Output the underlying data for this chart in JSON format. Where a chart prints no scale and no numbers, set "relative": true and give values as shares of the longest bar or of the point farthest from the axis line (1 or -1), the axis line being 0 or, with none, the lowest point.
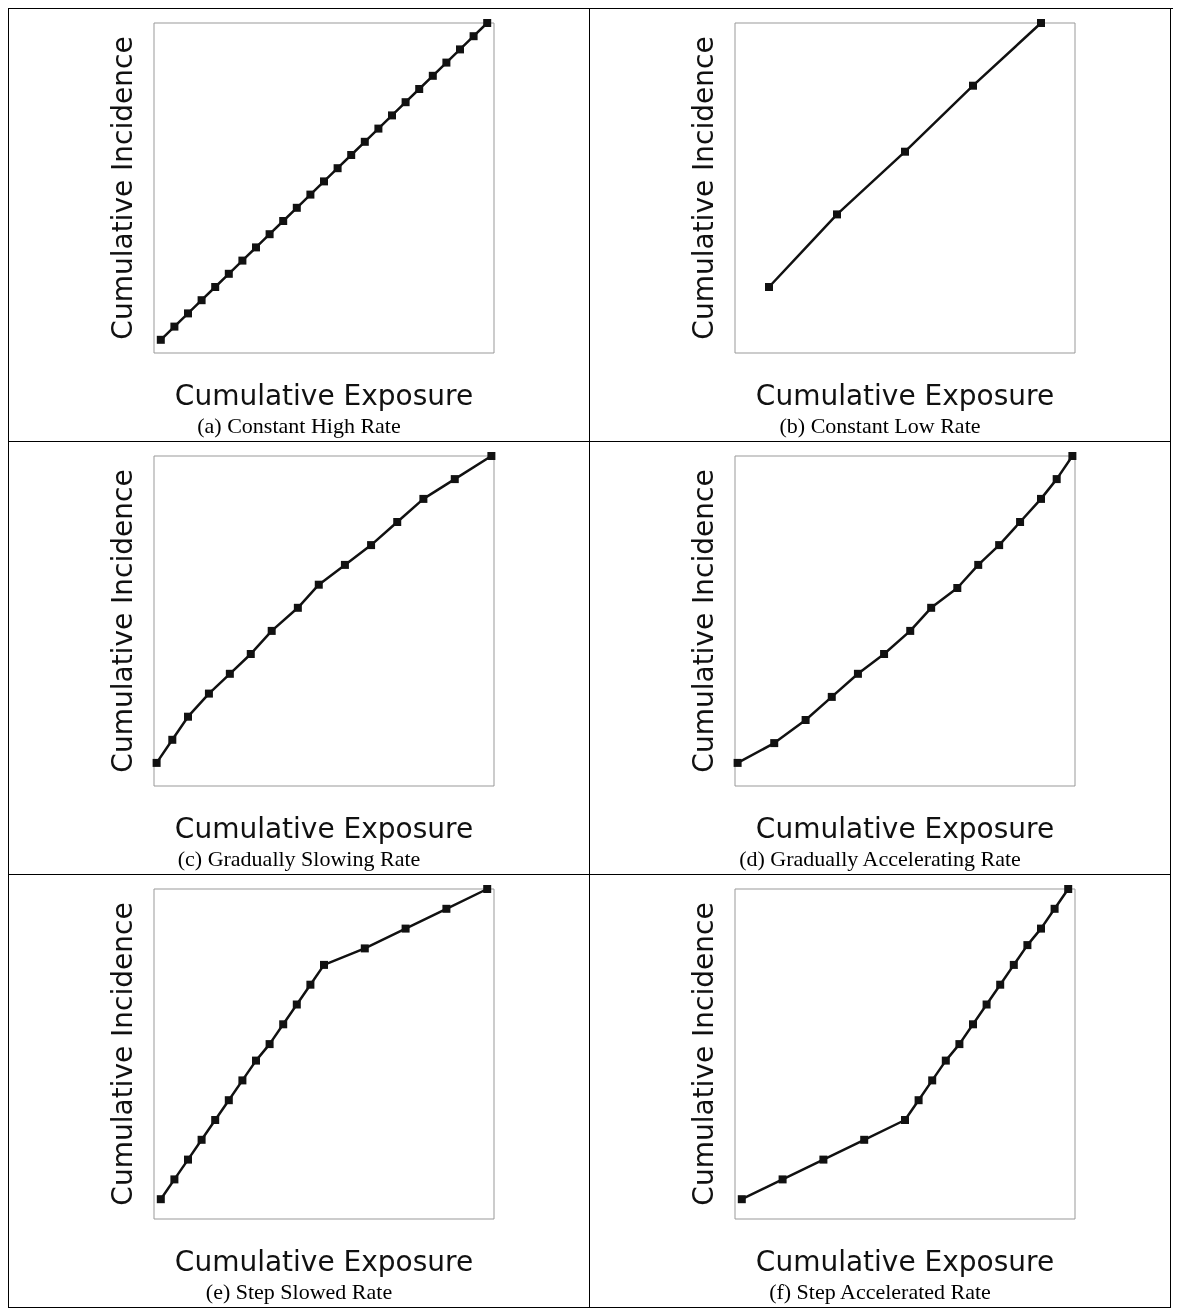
{
  "chart_data": [
    {
      "type": "line",
      "relative": true,
      "title": "(a) Constant High Rate",
      "xlabel": "Cumulative Exposure",
      "ylabel": "Cumulative Incidence",
      "color": "#111111",
      "marker": "square",
      "categories": [
        null,
        null,
        null,
        null,
        null,
        null,
        null,
        null,
        null,
        null,
        null,
        null,
        null,
        null,
        null,
        null,
        null,
        null,
        null,
        null,
        null,
        null,
        null,
        null,
        null
      ],
      "values": [
        0.04,
        0.08,
        0.12,
        0.16,
        0.2,
        0.24,
        0.28,
        0.32,
        0.36,
        0.4,
        0.44,
        0.48,
        0.52,
        0.56,
        0.6,
        0.64,
        0.68,
        0.72,
        0.76,
        0.8,
        0.84,
        0.88,
        0.92,
        0.96,
        1.0
      ]
    },
    {
      "type": "line",
      "relative": true,
      "title": "(b) Constant Low Rate",
      "xlabel": "Cumulative Exposure",
      "ylabel": "Cumulative Incidence",
      "color": "#111111",
      "marker": "square",
      "categories": [
        null,
        null,
        null,
        null,
        null
      ],
      "values": [
        0.2,
        0.42,
        0.61,
        0.81,
        1.0
      ]
    },
    {
      "type": "line",
      "relative": true,
      "title": "(c) Gradually Slowing Rate",
      "xlabel": "Cumulative Exposure",
      "ylabel": "Cumulative Incidence",
      "color": "#111111",
      "marker": "square",
      "categories": [
        null,
        null,
        null,
        null,
        null,
        null,
        null,
        null,
        null,
        null,
        null,
        null,
        null,
        null,
        null,
        null,
        null,
        null,
        null,
        null,
        null,
        null,
        null,
        null,
        null,
        null,
        null,
        null,
        null,
        null,
        null,
        null,
        null,
        null,
        null,
        null,
        null,
        null,
        null,
        null,
        null,
        null,
        null,
        null,
        null,
        null,
        null,
        null,
        null,
        null,
        null,
        null,
        null,
        null,
        null,
        null,
        null,
        null,
        null,
        null,
        null,
        null,
        null,
        null,
        null
      ],
      "values": [
        0.07,
        null,
        null,
        0.14,
        null,
        null,
        0.21,
        null,
        null,
        null,
        0.28,
        null,
        null,
        null,
        0.34,
        null,
        null,
        null,
        0.4,
        null,
        null,
        null,
        0.47,
        null,
        null,
        null,
        null,
        0.54,
        null,
        null,
        null,
        0.61,
        null,
        null,
        null,
        null,
        0.67,
        null,
        null,
        null,
        null,
        0.73,
        null,
        null,
        null,
        null,
        0.8,
        null,
        null,
        null,
        null,
        0.87,
        null,
        null,
        null,
        null,
        null,
        0.93,
        null,
        null,
        null,
        null,
        null,
        null,
        1.0
      ]
    },
    {
      "type": "line",
      "relative": true,
      "title": "(d) Gradually Accelerating Rate",
      "xlabel": "Cumulative Exposure",
      "ylabel": "Cumulative Incidence",
      "color": "#111111",
      "marker": "square",
      "categories": [
        null,
        null,
        null,
        null,
        null,
        null,
        null,
        null,
        null,
        null,
        null,
        null,
        null,
        null,
        null,
        null,
        null,
        null,
        null,
        null,
        null,
        null,
        null,
        null,
        null,
        null,
        null,
        null,
        null,
        null,
        null,
        null,
        null,
        null,
        null,
        null,
        null,
        null,
        null,
        null,
        null,
        null,
        null,
        null,
        null,
        null,
        null,
        null,
        null,
        null,
        null,
        null,
        null,
        null,
        null,
        null,
        null,
        null,
        null,
        null,
        null,
        null,
        null,
        null,
        null
      ],
      "values": [
        0.07,
        null,
        null,
        null,
        null,
        null,
        null,
        0.13,
        null,
        null,
        null,
        null,
        null,
        0.2,
        null,
        null,
        null,
        null,
        0.27,
        null,
        null,
        null,
        null,
        0.34,
        null,
        null,
        null,
        null,
        0.4,
        null,
        null,
        null,
        null,
        0.47,
        null,
        null,
        null,
        0.54,
        null,
        null,
        null,
        null,
        0.6,
        null,
        null,
        null,
        0.67,
        null,
        null,
        null,
        0.73,
        null,
        null,
        null,
        0.8,
        null,
        null,
        null,
        0.87,
        null,
        null,
        0.93,
        null,
        null,
        1.0
      ]
    },
    {
      "type": "line",
      "relative": true,
      "title": "(e) Step Slowed Rate",
      "xlabel": "Cumulative Exposure",
      "ylabel": "Cumulative Incidence",
      "color": "#111111",
      "marker": "square",
      "categories": [
        null,
        null,
        null,
        null,
        null,
        null,
        null,
        null,
        null,
        null,
        null,
        null,
        null,
        null,
        null,
        null,
        null,
        null,
        null,
        null,
        null,
        null,
        null,
        null,
        null
      ],
      "values": [
        0.06,
        0.12,
        0.18,
        0.24,
        0.3,
        0.36,
        0.42,
        0.48,
        0.53,
        0.59,
        0.65,
        0.71,
        0.77,
        null,
        null,
        0.82,
        null,
        null,
        0.88,
        null,
        null,
        0.94,
        null,
        null,
        1.0
      ]
    },
    {
      "type": "line",
      "relative": true,
      "title": "(f) Step Accelerated Rate",
      "xlabel": "Cumulative Exposure",
      "ylabel": "Cumulative Incidence",
      "color": "#111111",
      "marker": "square",
      "categories": [
        null,
        null,
        null,
        null,
        null,
        null,
        null,
        null,
        null,
        null,
        null,
        null,
        null,
        null,
        null,
        null,
        null,
        null,
        null,
        null,
        null,
        null,
        null,
        null,
        null
      ],
      "values": [
        0.06,
        null,
        null,
        0.12,
        null,
        null,
        0.18,
        null,
        null,
        0.24,
        null,
        null,
        0.3,
        0.36,
        0.42,
        0.48,
        0.53,
        0.59,
        0.65,
        0.71,
        0.77,
        0.83,
        0.88,
        0.94,
        1.0
      ]
    }
  ]
}
